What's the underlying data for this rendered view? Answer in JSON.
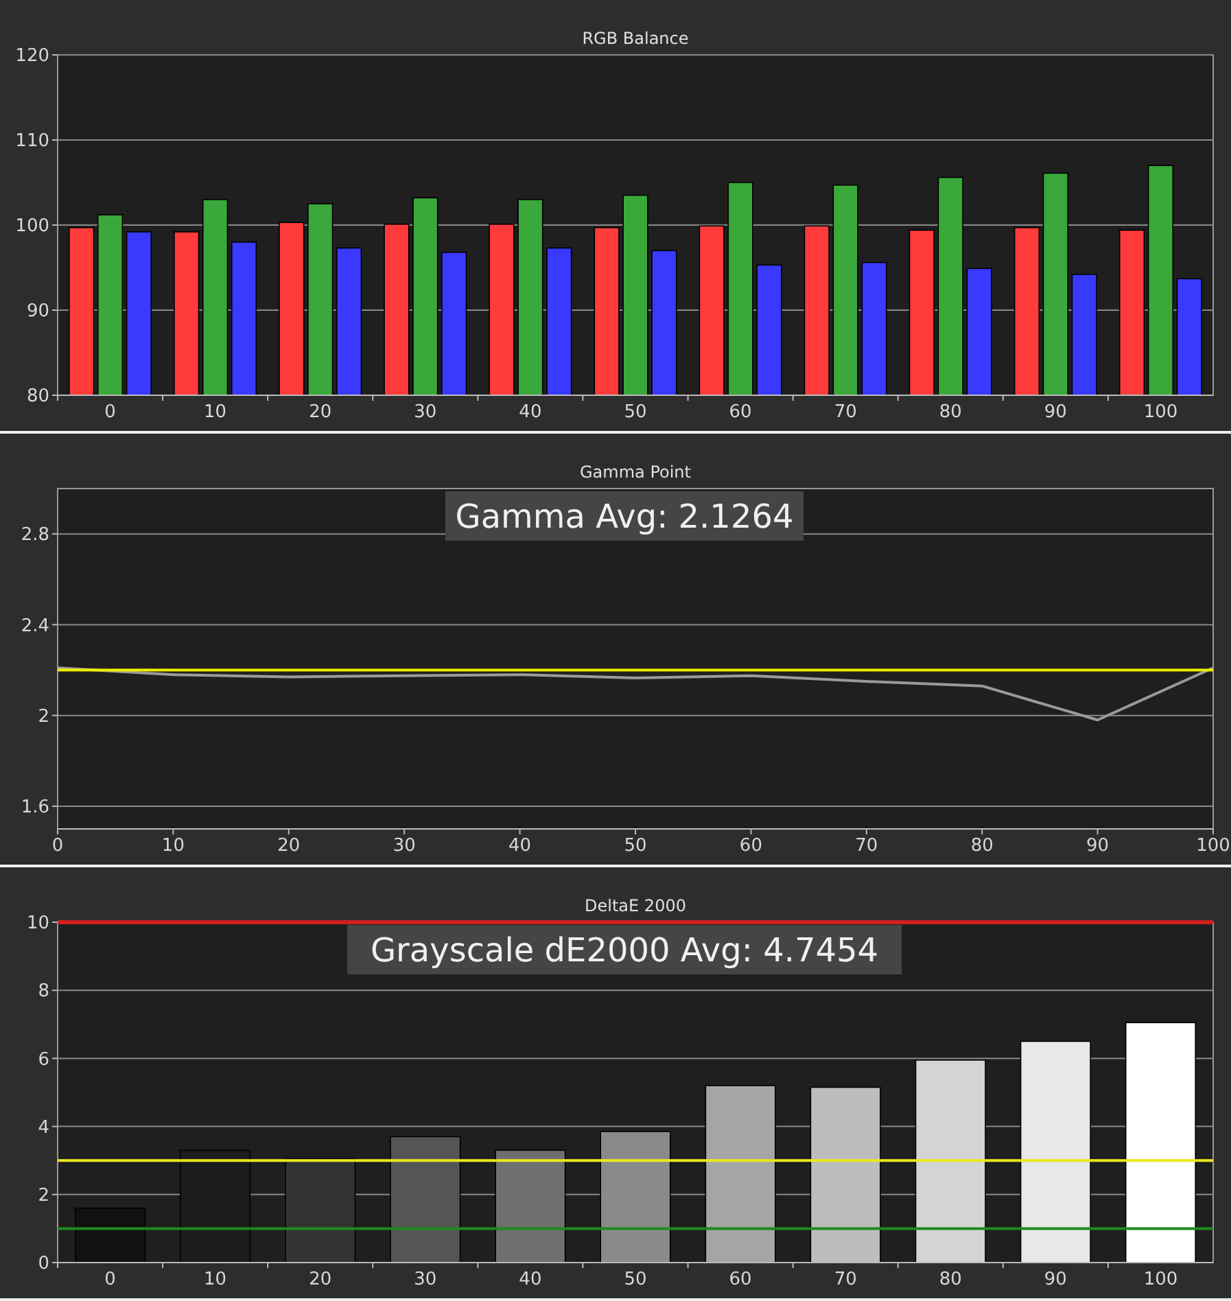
{
  "chart_data": [
    {
      "type": "bar",
      "title": "RGB Balance",
      "categories": [
        "0",
        "10",
        "20",
        "30",
        "40",
        "50",
        "60",
        "70",
        "80",
        "90",
        "100"
      ],
      "series": [
        {
          "color": "#ff3b3b",
          "values": [
            99.7,
            99.2,
            100.3,
            100.1,
            100.1,
            99.7,
            99.9,
            99.9,
            99.4,
            99.7,
            99.4
          ]
        },
        {
          "color": "#3aa83a",
          "values": [
            101.2,
            103,
            102.5,
            103.2,
            103,
            103.5,
            105,
            104.7,
            105.6,
            106.1,
            107
          ]
        },
        {
          "color": "#3a3aff",
          "values": [
            99.2,
            98,
            97.3,
            96.8,
            97.3,
            97,
            95.3,
            95.6,
            94.9,
            94.2,
            93.7
          ]
        }
      ],
      "ylim": [
        80,
        120
      ],
      "yticks": [
        80,
        90,
        100,
        110,
        120
      ],
      "grid": "y"
    },
    {
      "type": "line",
      "title": "Gamma Point",
      "x": [
        0,
        10,
        20,
        30,
        40,
        50,
        60,
        70,
        80,
        90,
        100
      ],
      "series": [
        {
          "color": "#9a9a9a",
          "values": [
            2.21,
            2.18,
            2.17,
            2.175,
            2.18,
            2.165,
            2.175,
            2.15,
            2.13,
            1.98,
            2.21
          ]
        }
      ],
      "xlim": [
        0,
        100
      ],
      "xticks": [
        0,
        10,
        20,
        30,
        40,
        50,
        60,
        70,
        80,
        90,
        100
      ],
      "ylim": [
        1.5,
        3.0
      ],
      "yticks": [
        1.6,
        2,
        2.4,
        2.8
      ],
      "grid": "y",
      "marker": "none",
      "ref_lines": [
        {
          "axis": "y",
          "value": 2.2,
          "color": "#f0f000"
        }
      ],
      "annotations": [
        "Gamma Avg: 2.1264"
      ]
    },
    {
      "type": "bar",
      "title": "DeltaE 2000",
      "categories": [
        "0",
        "10",
        "20",
        "30",
        "40",
        "50",
        "60",
        "70",
        "80",
        "90",
        "100"
      ],
      "values": [
        1.6,
        3.3,
        3.05,
        3.7,
        3.3,
        3.85,
        5.2,
        5.15,
        5.95,
        6.5,
        7.05
      ],
      "colors": [
        "#111111",
        "#1c1c1c",
        "#333333",
        "#555555",
        "#6f6f6f",
        "#8a8a8a",
        "#a5a5a5",
        "#bdbdbd",
        "#d4d4d4",
        "#e8e8e8",
        "#ffffff"
      ],
      "ylim": [
        0,
        10
      ],
      "yticks": [
        0,
        2,
        4,
        6,
        8,
        10
      ],
      "grid": "y",
      "ref_lines": [
        {
          "axis": "y",
          "value": 10,
          "color": "#d02020"
        },
        {
          "axis": "y",
          "value": 3,
          "color": "#e8e820"
        },
        {
          "axis": "y",
          "value": 1,
          "color": "#208a20"
        }
      ],
      "annotations": [
        "Grayscale dE2000 Avg: 4.7454"
      ]
    }
  ]
}
